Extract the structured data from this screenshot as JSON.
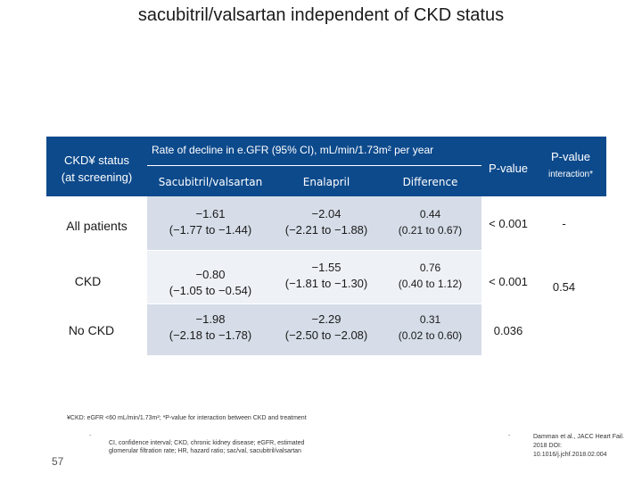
{
  "title": "sacubitril/valsartan independent of CKD status",
  "header": {
    "left_line1": "CKD¥ status",
    "left_line2": "(at screening)",
    "rate": "Rate of decline in e.GFR (95% CI), mL/min/1.73m² per year",
    "pvalue": "P-value",
    "pint_line1": "P-value",
    "pint_line2": "interaction*",
    "col_sac": "Sacubitril/valsartan",
    "col_enal": "Enalapril",
    "col_diff": "Difference"
  },
  "rows": [
    {
      "label": "All patients",
      "sac1": "−1.61",
      "sac2": "(−1.77 to −1.44)",
      "enal1": "−2.04",
      "enal2": "(−2.21 to −1.88)",
      "diff1": "0.44",
      "diff2": "(0.21 to 0.67)",
      "p": "< 0.001",
      "pint": "-"
    },
    {
      "label": "CKD",
      "sac1": "−0.80",
      "sac2": "(−1.05 to −0.54)",
      "enal1": "−1.55",
      "enal2": "(−1.81 to −1.30)",
      "diff1": "0.76",
      "diff2": "(0.40 to 1.12)",
      "p": "< 0.001",
      "pint": "0.54"
    },
    {
      "label": "No CKD",
      "sac1": "−1.98",
      "sac2": "(−2.18 to −1.78)",
      "enal1": "−2.29",
      "enal2": "(−2.50 to −2.08)",
      "diff1": "0.31",
      "diff2": "(0.02 to 0.60)",
      "p": "0.036",
      "pint": ""
    }
  ],
  "footnote": "¥CKD: eGFR <60 mL/min/1.73m²; *P-value for interaction between CKD and treatment",
  "abbrev1": "CI, confidence interval; CKD, chronic kidney disease; eGFR, estimated",
  "abbrev2": "glomerular filtration rate; HR, hazard ratio; sac/val, sacubitril/valsartan",
  "citation1": "Damman et al., JACC Heart Fail.",
  "citation2": "2018 DOI:",
  "citation3": "10.1016/j.jchf.2018.02.004",
  "slide_number": "57",
  "bullet": "-"
}
